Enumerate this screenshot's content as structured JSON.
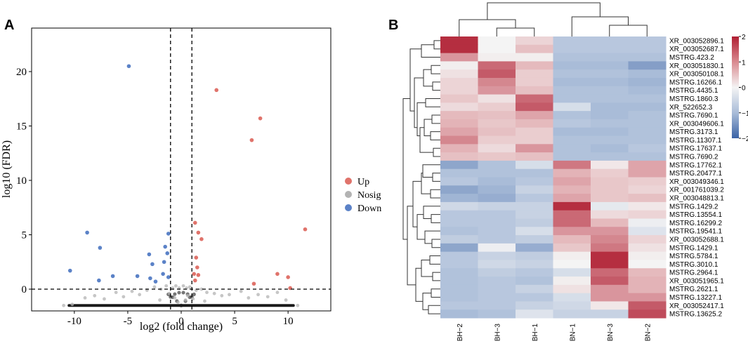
{
  "chart_data": [
    {
      "panel": "A",
      "type": "scatter",
      "xlabel": "log2 (fold change)",
      "ylabel": "log10 (FDR)",
      "xlim": [
        -14,
        14
      ],
      "ylim": [
        -2,
        24
      ],
      "xticks": [
        -10,
        -5,
        0,
        5,
        10
      ],
      "yticks": [
        0,
        5,
        10,
        15,
        20
      ],
      "thresholds": {
        "x": [
          -1,
          1
        ],
        "y": 0
      },
      "legend": {
        "placement": "right",
        "entries": [
          {
            "name": "Up",
            "color": "#e0736b"
          },
          {
            "name": "Nosig",
            "color": "#b3b3b3"
          },
          {
            "name": "Down",
            "color": "#5b82c7"
          }
        ]
      },
      "series": [
        {
          "name": "Up",
          "color": "#e0736b",
          "points": [
            [
              3.3,
              18.3
            ],
            [
              7.4,
              15.7
            ],
            [
              6.6,
              13.7
            ],
            [
              11.6,
              5.5
            ],
            [
              1.3,
              6.1
            ],
            [
              1.6,
              5.2
            ],
            [
              1.9,
              4.6
            ],
            [
              1.4,
              2.9
            ],
            [
              1.5,
              2.0
            ],
            [
              1.2,
              1.4
            ],
            [
              1.6,
              1.3
            ],
            [
              1.3,
              0.8
            ],
            [
              9.0,
              1.4
            ],
            [
              10.0,
              1.1
            ],
            [
              6.8,
              0.5
            ],
            [
              10.2,
              0.1
            ]
          ]
        },
        {
          "name": "Down",
          "color": "#5b82c7",
          "points": [
            [
              -4.9,
              20.5
            ],
            [
              -8.8,
              5.2
            ],
            [
              -1.2,
              5.1
            ],
            [
              -7.6,
              3.8
            ],
            [
              -1.5,
              3.9
            ],
            [
              -1.3,
              3.3
            ],
            [
              -3.0,
              3.2
            ],
            [
              -1.6,
              2.5
            ],
            [
              -2.7,
              2.3
            ],
            [
              -10.4,
              1.7
            ],
            [
              -1.7,
              1.4
            ],
            [
              -6.4,
              1.2
            ],
            [
              -4.1,
              1.2
            ],
            [
              -1.2,
              1.1
            ],
            [
              -7.7,
              0.8
            ],
            [
              -2.9,
              1.0
            ],
            [
              -2.4,
              0.7
            ]
          ]
        },
        {
          "name": "Nosig",
          "color": "#b3b3b3",
          "points": [
            [
              -10.2,
              -1.4
            ],
            [
              -9.0,
              -0.8
            ],
            [
              -8.1,
              -0.6
            ],
            [
              -7.2,
              -0.9
            ],
            [
              -6.1,
              -0.3
            ],
            [
              -5.4,
              -0.7
            ],
            [
              -4.6,
              -0.2
            ],
            [
              -3.9,
              -0.5
            ],
            [
              -3.2,
              -0.1
            ],
            [
              -2.5,
              0.2
            ],
            [
              -1.9,
              0.0
            ],
            [
              -1.4,
              0.3
            ],
            [
              -0.8,
              0.1
            ],
            [
              -0.5,
              0.3
            ],
            [
              -0.2,
              0.1
            ],
            [
              0.2,
              0.3
            ],
            [
              0.5,
              0.1
            ],
            [
              0.8,
              0.2
            ],
            [
              1.4,
              -0.1
            ],
            [
              1.9,
              0.0
            ],
            [
              2.4,
              -0.3
            ],
            [
              3.1,
              -0.4
            ],
            [
              3.8,
              -0.6
            ],
            [
              4.5,
              -0.5
            ],
            [
              5.6,
              -0.2
            ],
            [
              6.3,
              -0.8
            ],
            [
              7.2,
              -0.5
            ],
            [
              8.1,
              -0.7
            ],
            [
              9.0,
              -0.3
            ],
            [
              9.8,
              -1.0
            ],
            [
              -11.0,
              -1.5
            ],
            [
              10.9,
              -1.5
            ],
            [
              -0.6,
              -0.8
            ],
            [
              0.6,
              -0.6
            ],
            [
              -1.1,
              -0.4
            ],
            [
              1.1,
              -0.9
            ],
            [
              -2.0,
              -1.0
            ],
            [
              2.2,
              -1.1
            ],
            [
              -0.3,
              -1.2
            ],
            [
              0.4,
              -1.0
            ]
          ]
        }
      ],
      "nonsig_band": {
        "x_range": [
          -10.5,
          10.5
        ],
        "y": -1.5
      }
    },
    {
      "panel": "B",
      "type": "heatmap",
      "columns": [
        "BH−2",
        "BH−3",
        "BH−1",
        "BN−1",
        "BN−3",
        "BN−2"
      ],
      "rows": [
        "XR_003052896.1",
        "XR_003052687.1",
        "MSTRG.423.2",
        "XR_003051830.1",
        "XR_003050108.1",
        "MSTRG.16266.1",
        "MSTRG.4435.1",
        "MSTRG.1860.3",
        "XR_522652.3",
        "MSTRG.7690.1",
        "XR_003049606.1",
        "MSTRG.3173.1",
        "MSTRG.11307.1",
        "MSTRG.17637.1",
        "MSTRG.7690.2",
        "MSTRG.17762.1",
        "MSTRG.20477.1",
        "XR_003049346.1",
        "XR_001761039.2",
        "XR_003048813.1",
        "MSTRG.1429.2",
        "MSTRG.13554.1",
        "MSTRG.16299.2",
        "MSTRG.19541.1",
        "XR_003052688.1",
        "MSTRG.1429.1",
        "MSTRG.5784.1",
        "MSTRG.3010.1",
        "MSTRG.2964.1",
        "XR_003051965.1",
        "MSTRG.2621.1",
        "MSTRG.13227.1",
        "XR_003052417.1",
        "MSTRG.13625.2"
      ],
      "values": [
        [
          1.9,
          0.0,
          0.5,
          -0.8,
          -0.8,
          -0.8
        ],
        [
          1.9,
          0.0,
          0.8,
          -0.8,
          -0.8,
          -0.8
        ],
        [
          1.2,
          0.1,
          0.1,
          -0.9,
          -0.9,
          -0.9
        ],
        [
          0.1,
          1.5,
          0.9,
          -1.0,
          -1.0,
          -1.4
        ],
        [
          0.3,
          1.6,
          0.6,
          -0.9,
          -0.9,
          -1.0
        ],
        [
          0.5,
          1.3,
          0.6,
          -1.0,
          -1.0,
          -1.1
        ],
        [
          0.5,
          1.2,
          0.8,
          -0.9,
          -0.9,
          -1.0
        ],
        [
          0.7,
          0.3,
          1.5,
          -0.9,
          -0.9,
          -0.9
        ],
        [
          0.4,
          0.6,
          1.6,
          -0.4,
          -1.0,
          -1.0
        ],
        [
          0.9,
          0.8,
          1.1,
          -0.9,
          -1.0,
          -0.9
        ],
        [
          1.0,
          0.7,
          0.9,
          -0.8,
          -0.9,
          -0.9
        ],
        [
          1.1,
          0.8,
          0.6,
          -1.0,
          -1.0,
          -0.9
        ],
        [
          1.3,
          0.6,
          0.6,
          -0.9,
          -0.9,
          -0.9
        ],
        [
          1.0,
          0.4,
          1.2,
          -0.9,
          -1.0,
          -0.8
        ],
        [
          0.8,
          0.7,
          0.8,
          -0.9,
          -0.9,
          -0.9
        ],
        [
          -1.3,
          -0.9,
          -0.4,
          1.4,
          0.2,
          1.1
        ],
        [
          -0.9,
          -0.9,
          -0.9,
          1.0,
          0.6,
          1.1
        ],
        [
          -0.8,
          -1.0,
          -0.8,
          1.1,
          0.7,
          0.6
        ],
        [
          -1.3,
          -1.1,
          -0.6,
          1.0,
          0.7,
          0.5
        ],
        [
          -1.1,
          -1.2,
          -0.8,
          1.1,
          0.7,
          0.8
        ],
        [
          -0.5,
          -0.6,
          -0.6,
          1.9,
          -0.2,
          0.2
        ],
        [
          -0.8,
          -0.8,
          -0.6,
          1.5,
          0.4,
          0.5
        ],
        [
          -0.8,
          -0.8,
          -0.7,
          1.5,
          0.9,
          -0.1
        ],
        [
          -0.9,
          -0.8,
          -0.4,
          1.2,
          1.2,
          -0.3
        ],
        [
          -0.7,
          -0.8,
          -0.7,
          0.9,
          1.3,
          0.5
        ],
        [
          -1.3,
          -0.1,
          -1.2,
          0.7,
          1.4,
          0.3
        ],
        [
          -0.8,
          -0.6,
          -0.7,
          0.1,
          1.9,
          0.1
        ],
        [
          -0.8,
          -0.5,
          -0.6,
          0.0,
          1.9,
          0.0
        ],
        [
          -0.9,
          -0.7,
          -0.8,
          -0.4,
          1.5,
          0.9
        ],
        [
          -0.9,
          -0.8,
          -0.9,
          0.1,
          1.6,
          1.0
        ],
        [
          -0.9,
          -0.8,
          -0.6,
          0.3,
          1.2,
          1.0
        ],
        [
          -0.9,
          -0.8,
          -0.8,
          -0.4,
          1.2,
          1.2
        ],
        [
          -0.8,
          -0.8,
          -0.6,
          -0.5,
          0.2,
          1.6
        ],
        [
          -1.0,
          -0.9,
          -0.3,
          -0.6,
          -0.6,
          1.7
        ]
      ],
      "color_scale": {
        "min": -2,
        "max": 2,
        "ticks": [
          2,
          1,
          0,
          -1,
          -2
        ],
        "tick_labels": [
          "2",
          "1",
          "0",
          "−1",
          "−2"
        ],
        "colors": {
          "low": "#3a63a6",
          "mid": "#f4f4f4",
          "high": "#b01f33"
        }
      }
    }
  ],
  "panels": {
    "a_label": "A",
    "b_label": "B"
  }
}
